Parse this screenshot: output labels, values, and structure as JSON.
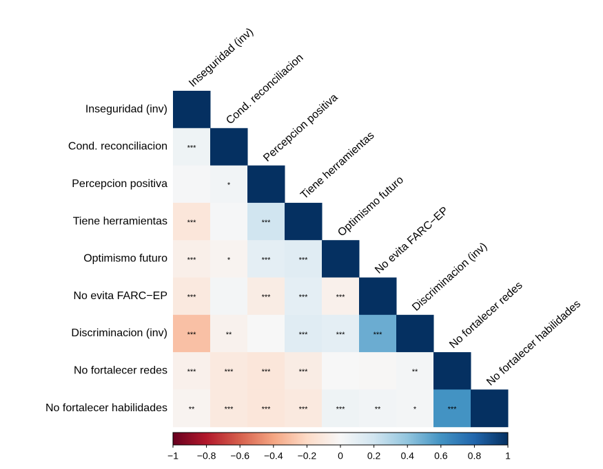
{
  "chart_data": {
    "type": "heatmap",
    "categories": [
      "Inseguridad (inv)",
      "Cond. reconciliacion",
      "Percepcion positiva",
      "Tiene herramientas",
      "Optimismo futuro",
      "No evita FARC−EP",
      "Discriminacion (inv)",
      "No fortalecer redes",
      "No fortalecer habilidades"
    ],
    "z": [
      [
        1,
        null,
        null,
        null,
        null,
        null,
        null,
        null,
        null
      ],
      [
        0.05,
        1,
        null,
        null,
        null,
        null,
        null,
        null,
        null
      ],
      [
        0.01,
        0.03,
        1,
        null,
        null,
        null,
        null,
        null,
        null
      ],
      [
        -0.12,
        0.01,
        0.2,
        1,
        null,
        null,
        null,
        null,
        null
      ],
      [
        -0.06,
        -0.03,
        0.1,
        0.12,
        1,
        null,
        null,
        null,
        null
      ],
      [
        -0.1,
        0.02,
        -0.08,
        0.1,
        -0.05,
        1,
        null,
        null,
        null
      ],
      [
        -0.3,
        -0.04,
        0.0,
        0.12,
        0.1,
        0.5,
        1,
        null,
        null
      ],
      [
        -0.05,
        -0.1,
        -0.12,
        -0.08,
        0.0,
        -0.01,
        0.02,
        1,
        null
      ],
      [
        -0.03,
        -0.1,
        -0.12,
        -0.1,
        0.05,
        0.03,
        0.02,
        0.6,
        1
      ]
    ],
    "labels": [
      [
        null,
        null,
        null,
        null,
        null,
        null,
        null,
        null,
        null
      ],
      [
        "***",
        null,
        null,
        null,
        null,
        null,
        null,
        null,
        null
      ],
      [
        null,
        "*",
        null,
        null,
        null,
        null,
        null,
        null,
        null
      ],
      [
        "***",
        null,
        "***",
        null,
        null,
        null,
        null,
        null,
        null
      ],
      [
        "***",
        "*",
        "***",
        "***",
        null,
        null,
        null,
        null,
        null
      ],
      [
        "***",
        null,
        "***",
        "***",
        "***",
        null,
        null,
        null,
        null
      ],
      [
        "***",
        "**",
        null,
        "***",
        "***",
        "***",
        null,
        null,
        null
      ],
      [
        "***",
        "***",
        "***",
        "***",
        null,
        null,
        "**",
        null,
        null
      ],
      [
        "**",
        "***",
        "***",
        "***",
        "***",
        "**",
        "*",
        "***",
        null
      ]
    ],
    "zlim": [
      -1,
      1
    ],
    "colorscale": [
      "#67001f",
      "#b2182b",
      "#d6604d",
      "#f4a582",
      "#fddbc7",
      "#f7f7f7",
      "#d1e5f0",
      "#92c5de",
      "#4393c3",
      "#2166ac",
      "#053061"
    ],
    "zticks": [
      {
        "value": -1,
        "label": "−1"
      },
      {
        "value": -0.8,
        "label": "−0.8"
      },
      {
        "value": -0.6,
        "label": "−0.6"
      },
      {
        "value": -0.4,
        "label": "−0.4"
      },
      {
        "value": -0.2,
        "label": "−0.2"
      },
      0,
      0.2,
      0.4,
      0.6,
      0.8,
      1
    ]
  }
}
